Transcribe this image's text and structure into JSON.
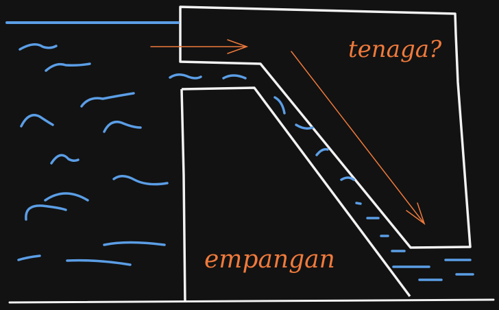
{
  "labels": {
    "energy": "tenaga?",
    "dam": "empangan"
  },
  "colors": {
    "background": "#121212",
    "outline": "#f2f2f2",
    "water": "#5b9ee6",
    "annotation": "#f07a3c"
  }
}
